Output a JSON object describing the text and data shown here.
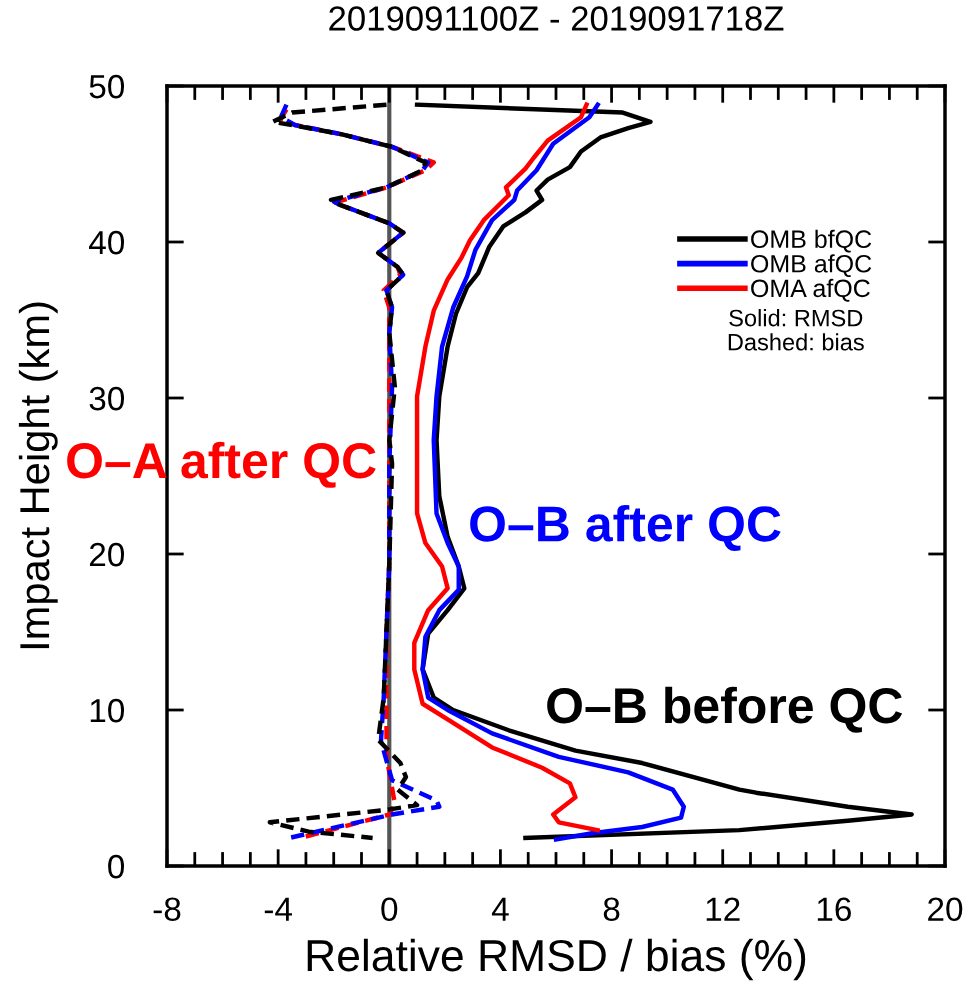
{
  "chart_data": {
    "type": "line",
    "title": "2019091100Z - 2019091718Z",
    "xlabel": "Relative RMSD / bias (%)",
    "ylabel": "Impact Height (km)",
    "xlim": [
      -8,
      20
    ],
    "xticks": [
      -8,
      -4,
      0,
      4,
      8,
      12,
      16,
      20
    ],
    "ylim": [
      0,
      50
    ],
    "yticks": [
      0,
      10,
      20,
      30,
      40,
      50
    ],
    "grid": false,
    "legend": "top right",
    "marker": "none",
    "series": [
      {
        "name": "OMB bfQC",
        "color": "#000000",
        "line_style": "solid",
        "x": [
          1.0,
          8.4,
          9.4,
          8.6,
          7.6,
          6.9,
          6.5,
          5.7,
          5.3,
          5.5,
          4.9,
          4.1,
          3.6,
          3.2,
          2.8,
          2.4,
          2.1,
          1.8,
          1.7,
          1.8,
          2.1,
          2.5,
          2.7,
          2.1,
          1.4,
          1.2,
          1.6,
          2.3,
          4.3,
          6.7,
          9.1,
          12.6,
          13.2,
          16.5,
          18.8,
          16.5,
          12.6,
          4.9
        ],
        "values": [
          48.8,
          48.3,
          47.7,
          47.3,
          46.7,
          45.8,
          44.8,
          44.0,
          43.3,
          42.7,
          41.9,
          41.0,
          39.7,
          38.0,
          37.1,
          35.4,
          33.3,
          30.1,
          27.3,
          23.7,
          21.1,
          19.2,
          17.8,
          16.4,
          14.9,
          12.6,
          10.8,
          10.0,
          8.7,
          7.4,
          6.6,
          4.9,
          4.7,
          3.8,
          3.3,
          2.9,
          2.3,
          1.8
        ]
      },
      {
        "name": "OMB afQC",
        "color": "#0000ff",
        "line_style": "solid",
        "x": [
          7.5,
          7.2,
          5.9,
          5.3,
          4.6,
          4.5,
          3.7,
          3.1,
          2.8,
          2.3,
          1.9,
          1.7,
          1.6,
          1.7,
          2.1,
          2.5,
          2.5,
          1.8,
          1.3,
          1.2,
          1.4,
          2.1,
          3.7,
          6.1,
          8.6,
          10.2,
          10.6,
          10.5,
          9.1,
          7.3,
          6.0
        ],
        "values": [
          48.8,
          48.0,
          46.3,
          44.6,
          43.3,
          42.7,
          41.4,
          39.5,
          37.8,
          35.8,
          33.3,
          30.1,
          27.3,
          22.6,
          20.7,
          19.2,
          17.7,
          16.4,
          14.7,
          12.6,
          10.8,
          10.0,
          8.5,
          7.0,
          6.0,
          4.9,
          3.8,
          3.1,
          2.5,
          2.1,
          1.7
        ]
      },
      {
        "name": "OMA afQC",
        "color": "#ff0000",
        "line_style": "solid",
        "x": [
          7.1,
          6.9,
          5.7,
          5.2,
          4.9,
          4.2,
          4.3,
          3.4,
          2.9,
          2.6,
          2.1,
          1.6,
          1.3,
          1.0,
          1.0,
          1.0,
          1.3,
          1.9,
          2.1,
          1.4,
          0.9,
          0.9,
          1.2,
          2.1,
          3.7,
          5.5,
          6.5,
          6.7,
          5.9,
          6.1,
          7.5
        ],
        "values": [
          48.8,
          48.0,
          46.5,
          45.4,
          44.7,
          43.5,
          43.0,
          41.4,
          40.1,
          39.0,
          37.6,
          35.6,
          33.3,
          30.1,
          27.3,
          22.6,
          20.7,
          19.2,
          17.8,
          16.4,
          14.3,
          12.6,
          10.4,
          9.4,
          7.6,
          6.3,
          5.3,
          4.4,
          3.3,
          2.8,
          2.3
        ]
      },
      {
        "color": "#ff0000",
        "line_style": "dashed",
        "x": [
          -3.7,
          -3.9,
          -3.4,
          -1.7,
          0.1,
          1.6,
          1.3,
          -0.1,
          -2.0,
          -1.8,
          0.0,
          0.5,
          -0.4,
          0.3,
          0.4,
          -0.2,
          0.0,
          0.0,
          0.0,
          0.0,
          0.0,
          -0.1,
          -0.1,
          -0.1,
          0.2,
          0.0,
          -3.2
        ],
        "values": [
          48.5,
          47.9,
          47.5,
          46.9,
          46.1,
          45.1,
          44.6,
          43.5,
          42.5,
          42.4,
          41.2,
          40.6,
          39.3,
          38.4,
          37.9,
          36.9,
          35.8,
          34.2,
          30.7,
          25.8,
          19.4,
          15.1,
          10.8,
          7.0,
          4.0,
          3.3,
          1.8
        ]
      },
      {
        "color": "#0000ff",
        "line_style": "dashed",
        "x": [
          -3.7,
          -3.9,
          -3.4,
          -1.7,
          0.1,
          1.4,
          1.2,
          -0.1,
          -2.0,
          -1.8,
          0.0,
          0.5,
          -0.4,
          0.3,
          0.5,
          -0.1,
          0.1,
          0.0,
          0.1,
          0.0,
          0.0,
          -0.1,
          -0.2,
          -0.3,
          0.1,
          1.7,
          1.8,
          0.1,
          -3.6
        ],
        "values": [
          48.8,
          48.0,
          47.5,
          46.9,
          46.1,
          45.1,
          44.6,
          43.5,
          42.6,
          42.4,
          41.2,
          40.6,
          39.3,
          38.4,
          37.9,
          36.9,
          35.8,
          34.2,
          30.7,
          25.8,
          19.4,
          15.1,
          10.8,
          8.0,
          5.5,
          4.2,
          3.8,
          3.3,
          1.8
        ]
      },
      {
        "color": "#000000",
        "line_style": "dashed",
        "x": [
          -0.1,
          -3.5,
          -4.2,
          -3.5,
          -1.7,
          0.1,
          1.3,
          1.2,
          -0.1,
          -2.1,
          -1.8,
          0.0,
          0.5,
          -0.4,
          0.3,
          0.5,
          -0.1,
          0.1,
          0.0,
          0.2,
          0.0,
          0.1,
          0.0,
          -0.1,
          -0.2,
          -0.4,
          0.4,
          0.6,
          0.3,
          1.0,
          -0.1,
          -4.3,
          -2.9,
          -0.6
        ],
        "values": [
          48.8,
          48.3,
          47.7,
          47.5,
          46.9,
          46.1,
          45.1,
          44.6,
          43.5,
          42.7,
          42.4,
          41.2,
          40.6,
          39.3,
          38.4,
          37.9,
          36.9,
          35.8,
          34.2,
          30.7,
          27.3,
          25.8,
          19.4,
          15.1,
          10.8,
          8.1,
          6.6,
          5.7,
          4.9,
          3.9,
          3.6,
          2.8,
          2.2,
          1.8
        ]
      }
    ],
    "ref_lines": [
      {
        "axis": "x",
        "value": 0,
        "color": "#555555"
      }
    ],
    "annotations": [
      "O–A after QC",
      "O–B after QC",
      "O–B before QC",
      "Solid: RMSD",
      "Dashed: bias"
    ]
  }
}
